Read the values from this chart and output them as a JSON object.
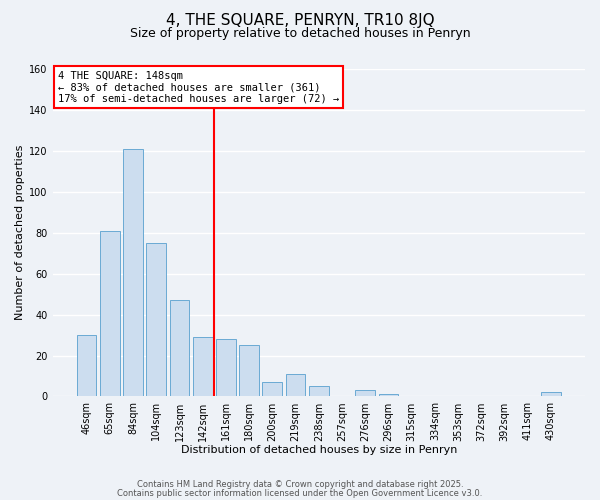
{
  "title": "4, THE SQUARE, PENRYN, TR10 8JQ",
  "subtitle": "Size of property relative to detached houses in Penryn",
  "xlabel": "Distribution of detached houses by size in Penryn",
  "ylabel": "Number of detached properties",
  "bar_labels": [
    "46sqm",
    "65sqm",
    "84sqm",
    "104sqm",
    "123sqm",
    "142sqm",
    "161sqm",
    "180sqm",
    "200sqm",
    "219sqm",
    "238sqm",
    "257sqm",
    "276sqm",
    "296sqm",
    "315sqm",
    "334sqm",
    "353sqm",
    "372sqm",
    "392sqm",
    "411sqm",
    "430sqm"
  ],
  "bar_values": [
    30,
    81,
    121,
    75,
    47,
    29,
    28,
    25,
    7,
    11,
    5,
    0,
    3,
    1,
    0,
    0,
    0,
    0,
    0,
    0,
    2
  ],
  "bar_color": "#ccddef",
  "bar_edge_color": "#6aaad4",
  "vline_x": 5.5,
  "vline_color": "red",
  "vline_lw": 1.5,
  "annotation_title": "4 THE SQUARE: 148sqm",
  "annotation_line1": "← 83% of detached houses are smaller (361)",
  "annotation_line2": "17% of semi-detached houses are larger (72) →",
  "ylim": [
    0,
    160
  ],
  "yticks": [
    0,
    20,
    40,
    60,
    80,
    100,
    120,
    140,
    160
  ],
  "background_color": "#eef2f7",
  "grid_color": "#ffffff",
  "footer1": "Contains HM Land Registry data © Crown copyright and database right 2025.",
  "footer2": "Contains public sector information licensed under the Open Government Licence v3.0.",
  "title_fontsize": 11,
  "subtitle_fontsize": 9,
  "label_fontsize": 8,
  "tick_fontsize": 7,
  "annotation_fontsize": 7.5,
  "footer_fontsize": 6
}
